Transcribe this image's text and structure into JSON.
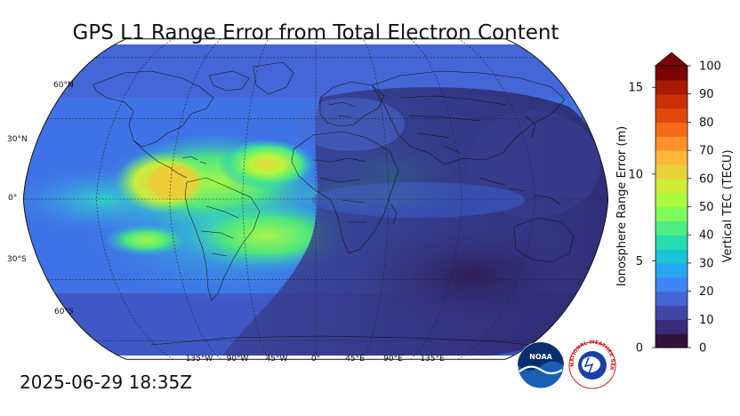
{
  "title": "GPS L1 Range Error from Total Electron Content",
  "timestamp": "2025-06-29 18:35Z",
  "map": {
    "lat_labels": [
      "60°N",
      "30°N",
      "0°",
      "30°S",
      "60°S"
    ],
    "lon_labels": [
      "135°W",
      "90°W",
      "45°W",
      "0°",
      "45°E",
      "90°E",
      "135°E"
    ]
  },
  "colorbar": {
    "left_axis_title": "Ionosphere Range Error (m)",
    "right_axis_title": "Vertical TEC (TECU)",
    "left_ticks": [
      "0",
      "5",
      "10",
      "15"
    ],
    "right_ticks": [
      "0",
      "10",
      "20",
      "30",
      "40",
      "50",
      "60",
      "70",
      "80",
      "90",
      "100"
    ],
    "colors": [
      "#30123b",
      "#3a2a7a",
      "#4046a8",
      "#4565d6",
      "#3f85f5",
      "#28a6f0",
      "#1bc4d4",
      "#24dcb0",
      "#4cee82",
      "#7efb5a",
      "#a9fb3c",
      "#cdec34",
      "#e9d33a",
      "#fbb838",
      "#fd9229",
      "#f56a18",
      "#e2480b",
      "#c93005",
      "#a81b02",
      "#7a0403"
    ]
  },
  "logos": {
    "noaa": "NOAA",
    "nws": "NATIONAL WEATHER SERVICE"
  }
}
